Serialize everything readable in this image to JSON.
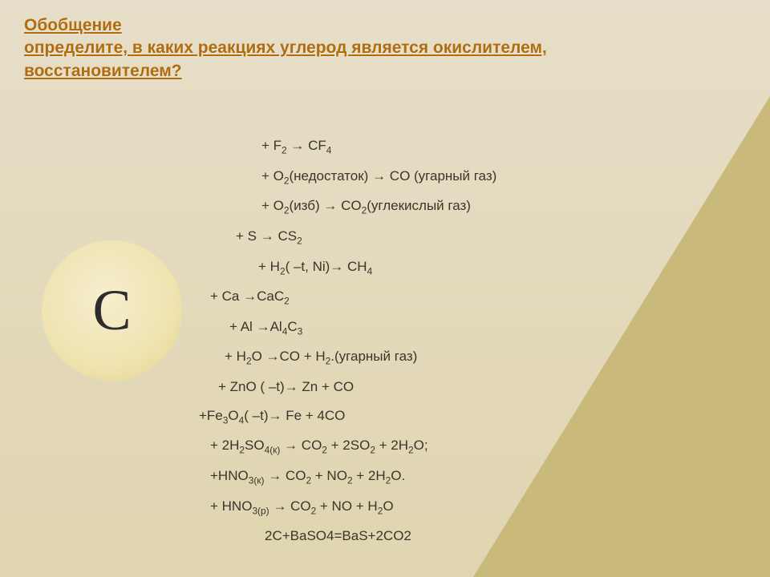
{
  "title": "Обобщение\nопределите, в каких реакциях углерод является окислителем, восстановителем?",
  "circleLabel": "C",
  "lines": [
    {
      "indent": 96,
      "html": "+ F<sub>2</sub> <span class='arrow'>→</span> CF<sub>4</sub>"
    },
    {
      "indent": 96,
      "html": "+ O<sub>2</sub>(недостаток) <span class='arrow'>→</span> CO (угарный газ)"
    },
    {
      "indent": 96,
      "html": "+ O<sub>2</sub>(изб) <span class='arrow'>→</span> CO<sub>2</sub>(углекислый газ)"
    },
    {
      "indent": 64,
      "html": "+ S <span class='arrow'>→</span> CS<sub>2</sub>"
    },
    {
      "indent": 92,
      "html": "+ H<sub>2</sub>( –t, Ni)<span class='arrow'>→</span> CH<sub>4</sub>"
    },
    {
      "indent": 32,
      "html": "+ Ca <span class='arrow'>→</span>CaC<sub>2</sub>"
    },
    {
      "indent": 56,
      "html": "+ Al <span class='arrow'>→</span>Al<sub>4</sub>C<sub>3</sub>"
    },
    {
      "indent": 50,
      "html": "+ H<sub>2</sub>O <span class='arrow'>→</span>CO + H<sub>2</sub>.(угарный газ)"
    },
    {
      "indent": 42,
      "html": "+ ZnO ( –t)<span class='arrow'>→</span> Zn + CO"
    },
    {
      "indent": 18,
      "html": "+Fe<sub>3</sub>O<sub>4</sub>( –t)<span class='arrow'>→</span> Fe + 4CO"
    },
    {
      "indent": 32,
      "html": "+ 2H<sub>2</sub>SO<sub>4(к)</sub> <span class='arrow'>→</span> CO<sub>2</sub> + 2SO<sub>2</sub> + 2H<sub>2</sub>O;"
    },
    {
      "indent": 32,
      "html": "+HNO<sub>3(к)</sub> <span class='arrow'>→</span> CO<sub>2</sub> + NO<sub>2</sub> + 2H<sub>2</sub>O."
    },
    {
      "indent": 32,
      "html": "+ HNO<sub>3(р)</sub> <span class='arrow'>→</span> CO<sub>2</sub> + NO + H<sub>2</sub>O"
    },
    {
      "indent": 100,
      "html": "2C+BaSO4=BaS+2CO2"
    }
  ],
  "colors": {
    "title": "#b06c0e",
    "text": "#3a352a",
    "bgTop": "#e6dec8",
    "bgBottom": "#e0d5b0",
    "triangle": "#c9b97a",
    "circle": "#efe3b0"
  }
}
